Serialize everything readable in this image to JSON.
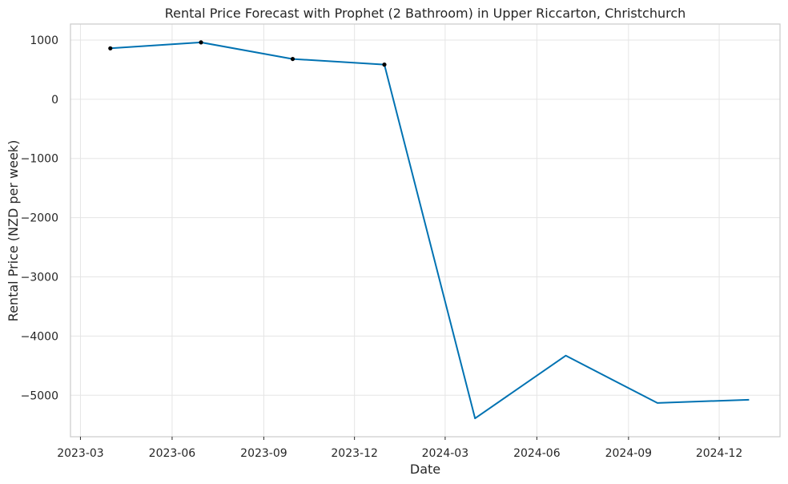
{
  "chart_data": {
    "type": "line",
    "title": "Rental Price Forecast with Prophet (2 Bathroom) in Upper Riccarton, Christchurch",
    "xlabel": "Date",
    "ylabel": "Rental Price (NZD per week)",
    "x_ticks": [
      "2023-03",
      "2023-06",
      "2023-09",
      "2023-12",
      "2024-03",
      "2024-06",
      "2024-09",
      "2024-12"
    ],
    "y_ticks": [
      1000,
      0,
      -1000,
      -2000,
      -3000,
      -4000,
      -5000
    ],
    "y_tick_labels": [
      "1000",
      "0",
      "−1000",
      "−2000",
      "−3000",
      "−4000",
      "−5000"
    ],
    "xlim": [
      "2023-02-19",
      "2025-01-31"
    ],
    "ylim": [
      -5700,
      1270
    ],
    "grid": true,
    "series": [
      {
        "type": "line",
        "color": "#0072B2",
        "points": [
          {
            "x": "2023-03-31",
            "y": 860
          },
          {
            "x": "2023-06-30",
            "y": 960
          },
          {
            "x": "2023-09-30",
            "y": 680
          },
          {
            "x": "2023-12-31",
            "y": 585
          },
          {
            "x": "2024-03-31",
            "y": -5390
          },
          {
            "x": "2024-06-30",
            "y": -4330
          },
          {
            "x": "2024-09-30",
            "y": -5130
          },
          {
            "x": "2024-12-31",
            "y": -5075
          }
        ]
      },
      {
        "type": "scatter",
        "color": "#000000",
        "points": [
          {
            "x": "2023-03-31",
            "y": 860
          },
          {
            "x": "2023-06-30",
            "y": 960
          },
          {
            "x": "2023-09-30",
            "y": 680
          },
          {
            "x": "2023-12-31",
            "y": 585
          }
        ]
      }
    ]
  }
}
